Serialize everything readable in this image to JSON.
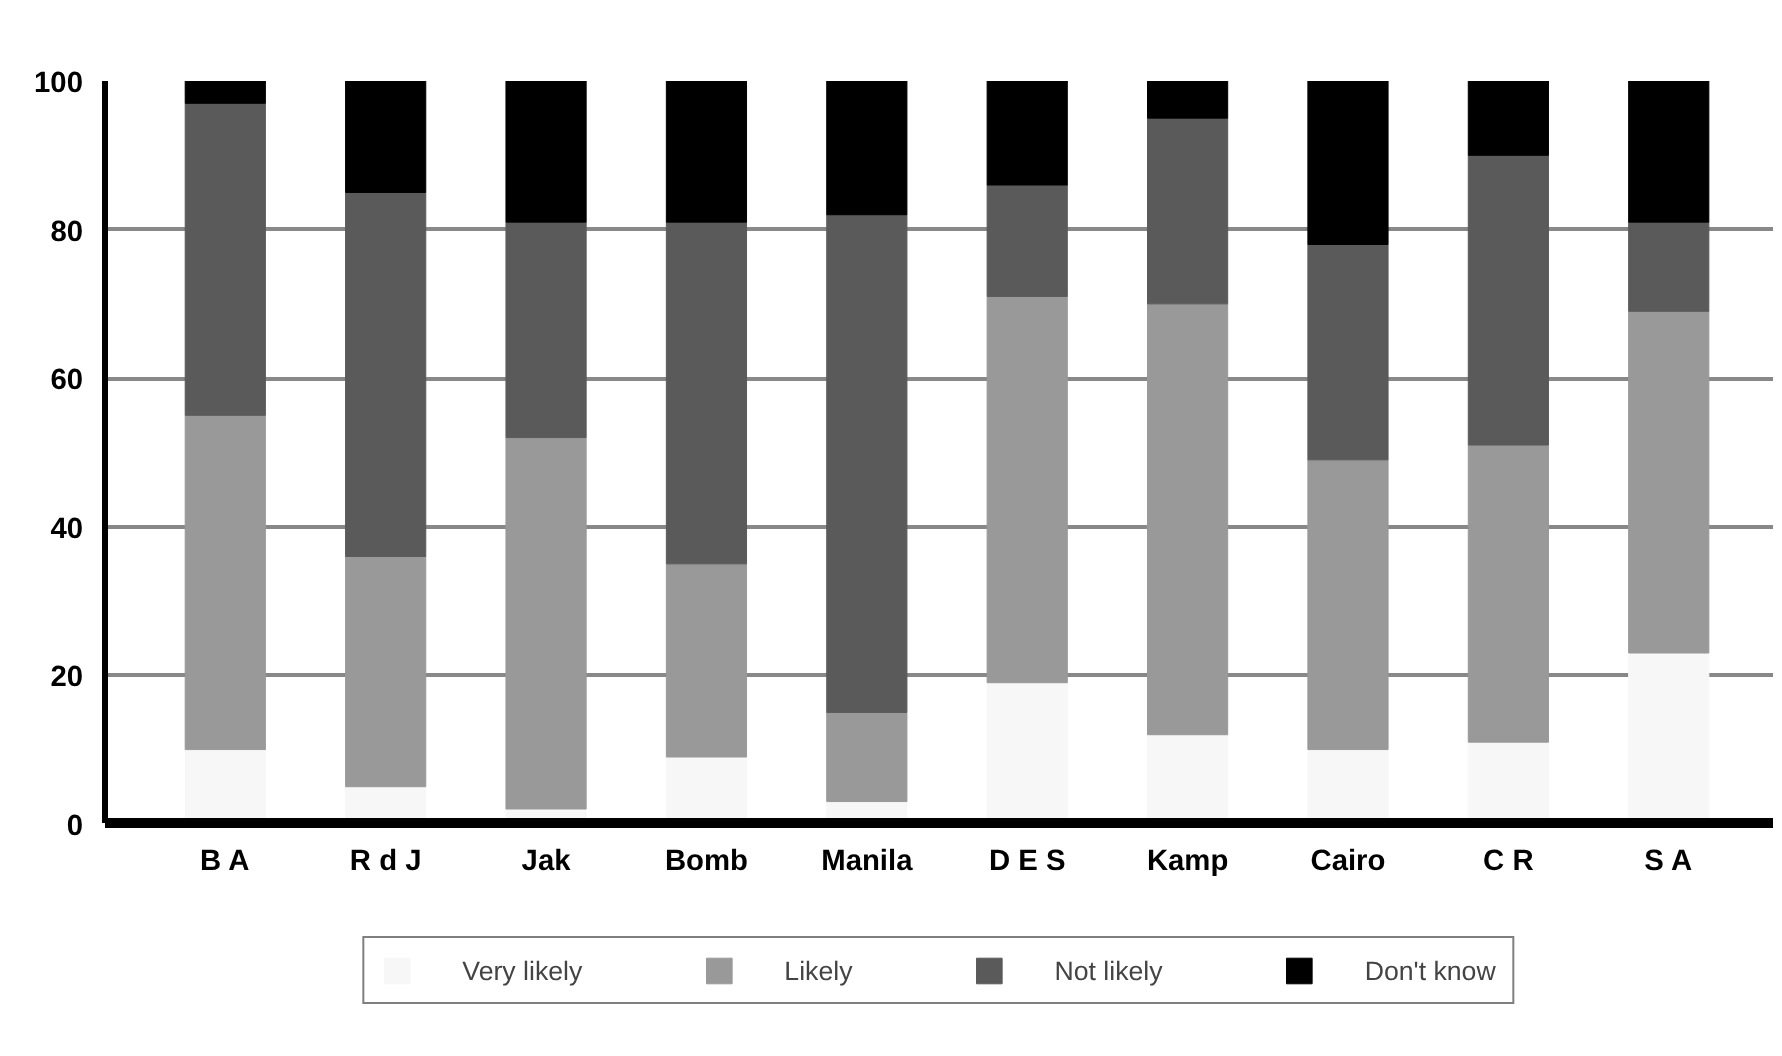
{
  "chart_data": {
    "type": "bar",
    "stacked": true,
    "categories": [
      "B A",
      "R d J",
      "Jak",
      "Bomb",
      "Manila",
      "D E S",
      "Kamp",
      "Cairo",
      "C R",
      "S A"
    ],
    "series": [
      {
        "name": "Very likely",
        "color": "#f7f7f7",
        "values": [
          10,
          5,
          2,
          9,
          3,
          19,
          12,
          10,
          11,
          23
        ]
      },
      {
        "name": "Likely",
        "color": "#999999",
        "values": [
          45,
          31,
          50,
          26,
          12,
          52,
          58,
          39,
          40,
          46
        ]
      },
      {
        "name": "Not likely",
        "color": "#5a5a5a",
        "values": [
          42,
          49,
          29,
          46,
          67,
          15,
          25,
          29,
          39,
          12
        ]
      },
      {
        "name": "Don't know",
        "color": "#000000",
        "values": [
          3,
          15,
          19,
          19,
          18,
          14,
          5,
          22,
          10,
          19
        ]
      }
    ],
    "ylim": [
      0,
      100
    ],
    "yticks": [
      0,
      20,
      40,
      60,
      80,
      100
    ],
    "grid": "y",
    "legend": "bottom"
  }
}
